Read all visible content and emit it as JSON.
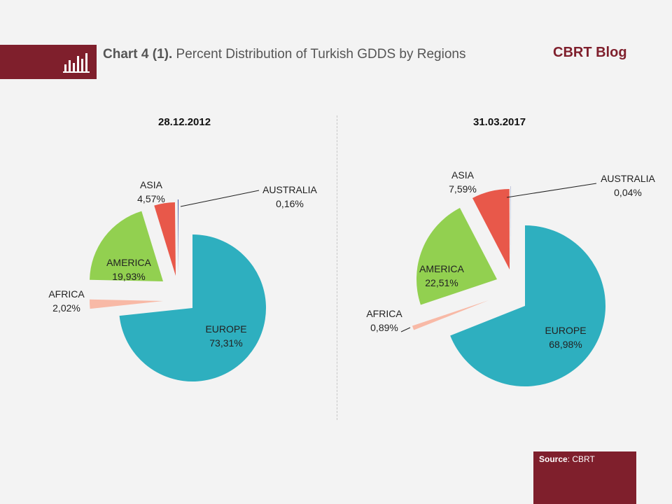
{
  "header": {
    "title_bold": "Chart 4 (1).",
    "title_rest": " Percent Distribution  of Turkish GDDS by Regions",
    "blog": "CBRT Blog"
  },
  "footer": {
    "source_label": "Source",
    "source_value": ": CBRT"
  },
  "icons": {
    "header": "bar-chart-icon"
  },
  "colors": {
    "brand": "#7f1f2c",
    "europe": "#2eafbf",
    "america": "#92d050",
    "asia": "#e8584a",
    "africa": "#f8b9a6",
    "australia": "#4b5aa6"
  },
  "chart_data": [
    {
      "type": "pie",
      "title": "28.12.2012",
      "slices": [
        {
          "label": "EUROPE",
          "value": 73.31,
          "value_text": "73,31%"
        },
        {
          "label": "AFRICA",
          "value": 2.02,
          "value_text": "2,02%"
        },
        {
          "label": "AMERICA",
          "value": 19.93,
          "value_text": "19,93%"
        },
        {
          "label": "ASIA",
          "value": 4.57,
          "value_text": "4,57%"
        },
        {
          "label": "AUSTRALIA",
          "value": 0.16,
          "value_text": "0,16%"
        }
      ]
    },
    {
      "type": "pie",
      "title": "31.03.2017",
      "slices": [
        {
          "label": "EUROPE",
          "value": 68.98,
          "value_text": "68,98%"
        },
        {
          "label": "AFRICA",
          "value": 0.89,
          "value_text": "0,89%"
        },
        {
          "label": "AMERICA",
          "value": 22.51,
          "value_text": "22,51%"
        },
        {
          "label": "ASIA",
          "value": 7.59,
          "value_text": "7,59%"
        },
        {
          "label": "AUSTRALIA",
          "value": 0.04,
          "value_text": "0,04%"
        }
      ]
    }
  ]
}
